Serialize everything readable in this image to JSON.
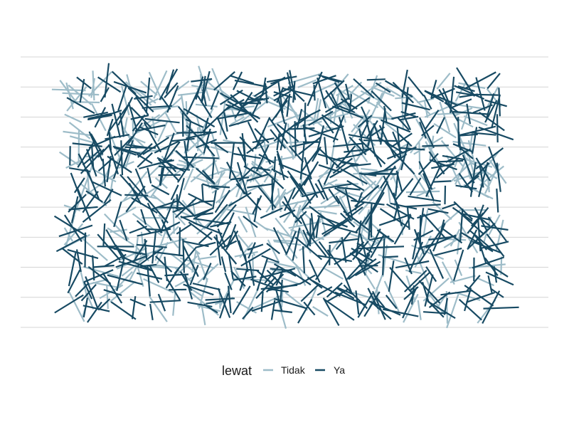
{
  "chart_data": {
    "type": "line",
    "title": "",
    "xlabel": "",
    "ylabel": "",
    "grid": {
      "horizontal": true,
      "vertical": false,
      "lines": 10
    },
    "legend": {
      "title": "lewat",
      "placement": "bottom",
      "items": [
        {
          "label": "Tidak",
          "color": "#9dbcc8"
        },
        {
          "label": "Ya",
          "color": "#174a63"
        }
      ]
    },
    "series": [
      {
        "label": "Tidak",
        "color": "#9dbcc8",
        "segment_count": 430,
        "seed": 1337
      },
      {
        "label": "Ya",
        "color": "#174a63",
        "segment_count": 760,
        "seed": 4242
      }
    ]
  }
}
